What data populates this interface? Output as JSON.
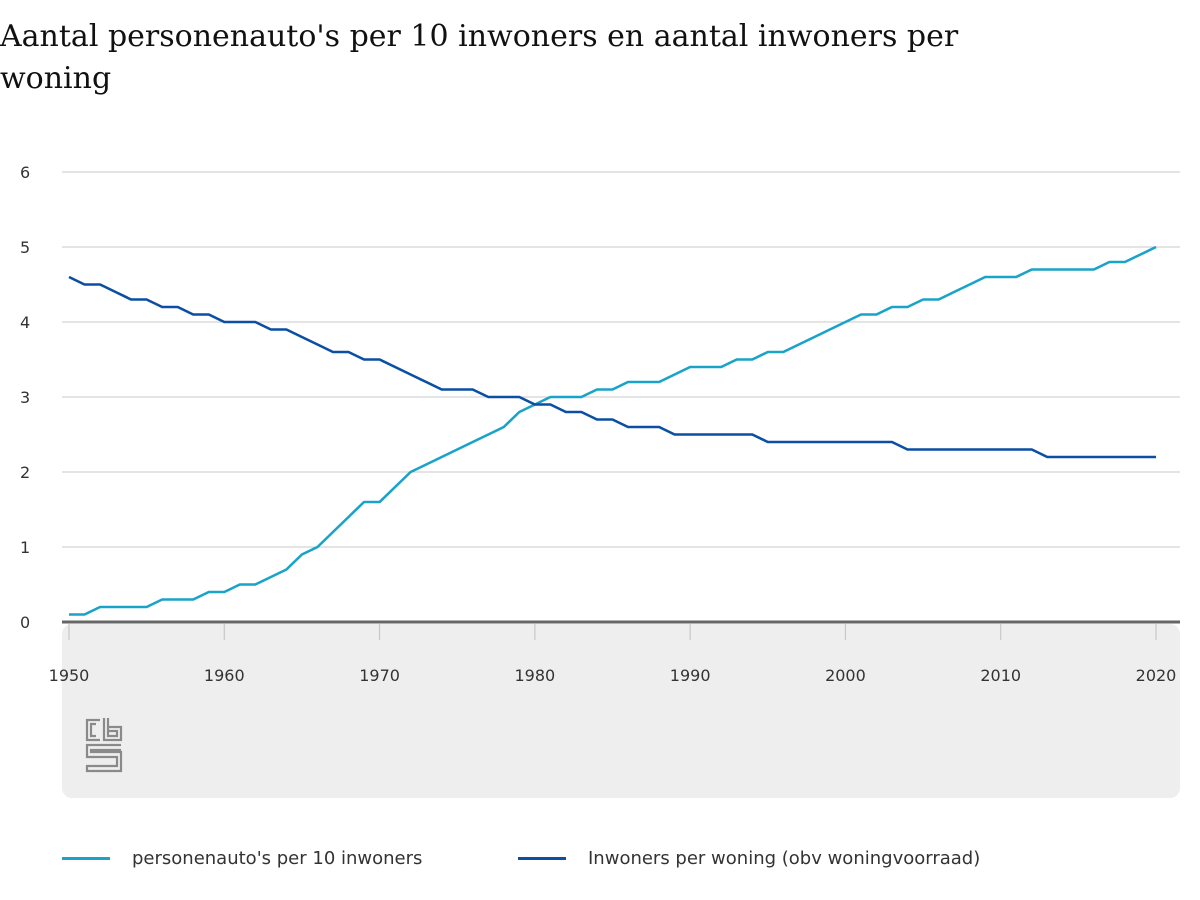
{
  "chart_data": {
    "type": "line",
    "title": "Aantal personenauto's per 10 inwoners en aantal inwoners per woning",
    "xlim": [
      1950,
      2020
    ],
    "ylim": [
      0,
      6
    ],
    "x_ticks": [
      "1950",
      "1960",
      "1970",
      "1980",
      "1990",
      "2000",
      "2010",
      "2020"
    ],
    "y_ticks": [
      "0",
      "1",
      "2",
      "3",
      "4",
      "5",
      "6"
    ],
    "grid": true,
    "legend_position": "bottom",
    "x": [
      1950,
      1951,
      1952,
      1953,
      1954,
      1955,
      1956,
      1957,
      1958,
      1959,
      1960,
      1961,
      1962,
      1963,
      1964,
      1965,
      1966,
      1967,
      1968,
      1969,
      1970,
      1971,
      1972,
      1973,
      1974,
      1975,
      1976,
      1977,
      1978,
      1979,
      1980,
      1981,
      1982,
      1983,
      1984,
      1985,
      1986,
      1987,
      1988,
      1989,
      1990,
      1991,
      1992,
      1993,
      1994,
      1995,
      1996,
      1997,
      1998,
      1999,
      2000,
      2001,
      2002,
      2003,
      2004,
      2005,
      2006,
      2007,
      2008,
      2009,
      2010,
      2011,
      2012,
      2013,
      2014,
      2015,
      2016,
      2017,
      2018,
      2019,
      2020
    ],
    "series": [
      {
        "name": "personenauto's per 10 inwoners",
        "color": "#1aa3c8",
        "values": [
          0.1,
          0.1,
          0.2,
          0.2,
          0.2,
          0.2,
          0.3,
          0.3,
          0.3,
          0.4,
          0.4,
          0.5,
          0.5,
          0.6,
          0.7,
          0.9,
          1.0,
          1.2,
          1.4,
          1.6,
          1.6,
          1.8,
          2.0,
          2.1,
          2.2,
          2.3,
          2.4,
          2.5,
          2.6,
          2.8,
          2.9,
          3.0,
          3.0,
          3.0,
          3.1,
          3.1,
          3.2,
          3.2,
          3.2,
          3.3,
          3.4,
          3.4,
          3.4,
          3.5,
          3.5,
          3.6,
          3.6,
          3.7,
          3.8,
          3.9,
          4.0,
          4.1,
          4.1,
          4.2,
          4.2,
          4.3,
          4.3,
          4.4,
          4.5,
          4.6,
          4.6,
          4.6,
          4.7,
          4.7,
          4.7,
          4.7,
          4.7,
          4.8,
          4.8,
          4.9,
          5.0
        ]
      },
      {
        "name": "Inwoners per woning (obv woningvoorraad)",
        "color": "#0a4fa3",
        "values": [
          4.6,
          4.5,
          4.5,
          4.4,
          4.3,
          4.3,
          4.2,
          4.2,
          4.1,
          4.1,
          4.0,
          4.0,
          4.0,
          3.9,
          3.9,
          3.8,
          3.7,
          3.6,
          3.6,
          3.5,
          3.5,
          3.4,
          3.3,
          3.2,
          3.1,
          3.1,
          3.1,
          3.0,
          3.0,
          3.0,
          2.9,
          2.9,
          2.8,
          2.8,
          2.7,
          2.7,
          2.6,
          2.6,
          2.6,
          2.5,
          2.5,
          2.5,
          2.5,
          2.5,
          2.5,
          2.4,
          2.4,
          2.4,
          2.4,
          2.4,
          2.4,
          2.4,
          2.4,
          2.4,
          2.3,
          2.3,
          2.3,
          2.3,
          2.3,
          2.3,
          2.3,
          2.3,
          2.3,
          2.2,
          2.2,
          2.2,
          2.2,
          2.2,
          2.2,
          2.2,
          2.2
        ]
      }
    ]
  },
  "colors": {
    "grid": "#c8c8c8",
    "baseline": "#666666",
    "footer_bg": "#eeeeee",
    "logo": "#8a8a8a"
  },
  "logo_icon": "cbs-logo-icon"
}
